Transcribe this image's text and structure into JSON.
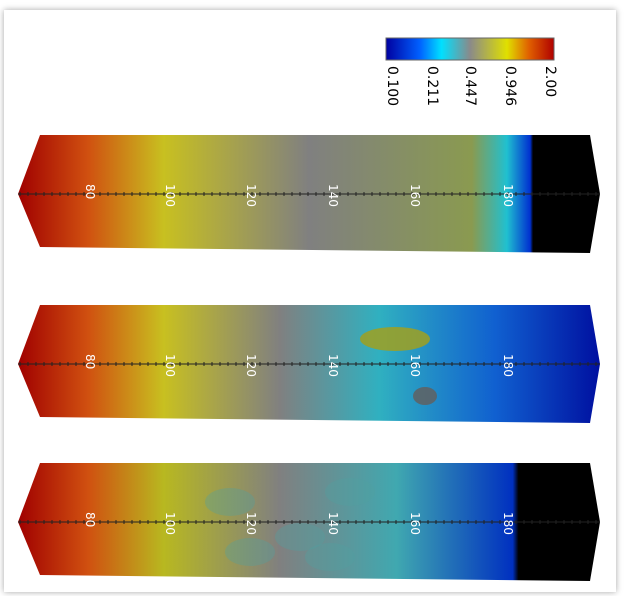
{
  "colorbar": {
    "labels": [
      "0.100",
      "0.211",
      "0.447",
      "0.946",
      "2.00"
    ]
  },
  "panels": [
    {
      "axis_labels": [
        "80",
        "100",
        "120",
        "140",
        "160",
        "180"
      ]
    },
    {
      "axis_labels": [
        "80",
        "100",
        "120",
        "140",
        "160",
        "180"
      ]
    },
    {
      "axis_labels": [
        "80",
        "100",
        "120",
        "140",
        "160",
        "180"
      ]
    }
  ]
}
